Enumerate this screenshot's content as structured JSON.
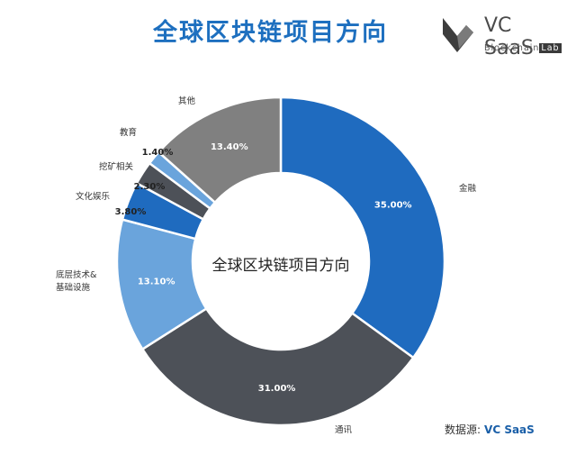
{
  "title": "全球区块链项目方向",
  "logo": {
    "name": "VC SaaS",
    "sub_prefix": "Blockchain",
    "sub_highlight": "Lab"
  },
  "source": {
    "label": "数据源:",
    "value": "VC SaaS"
  },
  "chart_data": {
    "type": "pie",
    "donut": true,
    "center_label": "全球区块链项目方向",
    "slices": [
      {
        "label": "金融",
        "value": 35.0,
        "display": "35.00%",
        "color": "#1f6bbf"
      },
      {
        "label": "通讯",
        "value": 31.0,
        "display": "31.00%",
        "color": "#4d5158"
      },
      {
        "label": "底层技术&基础设施",
        "value": 13.1,
        "display": "13.10%",
        "color": "#6aa4dc"
      },
      {
        "label": "文化娱乐",
        "value": 3.8,
        "display": "3.80%",
        "color": "#1f6bbf"
      },
      {
        "label": "挖矿相关",
        "value": 2.3,
        "display": "2.30%",
        "color": "#4d5158"
      },
      {
        "label": "教育",
        "value": 1.4,
        "display": "1.40%",
        "color": "#6aa4dc"
      },
      {
        "label": "其他",
        "value": 13.4,
        "display": "13.40%",
        "color": "#808080"
      }
    ]
  }
}
